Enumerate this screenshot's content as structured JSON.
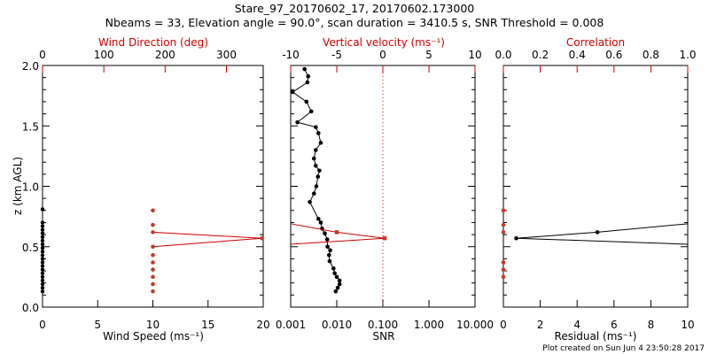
{
  "header": {
    "title_line1": "Stare_97_20170602_17, 20170602.173000",
    "title_line2": "Nbeams = 33, Elevation angle = 90.0°, scan duration = 3410.5 s, SNR Threshold = 0.008"
  },
  "footer": {
    "plot_created": "Plot created on Sun Jun  4 23:50:28 2017"
  },
  "colors": {
    "axis": "#000000",
    "accent": "#cc0000",
    "dot_red": "#c0392b"
  },
  "chart_data": [
    {
      "type": "scatter",
      "name": "wind",
      "ylabel": "z (km AGL)",
      "ylim": [
        0.0,
        2.0
      ],
      "yticks": [
        "0.0",
        "0.5",
        "1.0",
        "1.5",
        "2.0"
      ],
      "bottom_axis": {
        "label": "Wind Speed (ms⁻¹)",
        "lim": [
          0,
          20
        ],
        "ticks": [
          "0",
          "5",
          "10",
          "15",
          "20"
        ]
      },
      "top_axis": {
        "label": "Wind Direction (deg)",
        "lim": [
          0,
          360
        ],
        "ticks": [
          "0",
          "100",
          "200",
          "300"
        ]
      },
      "wind_speed": {
        "z": [
          0.13,
          0.16,
          0.19,
          0.22,
          0.25,
          0.28,
          0.31,
          0.34,
          0.37,
          0.4,
          0.43,
          0.46,
          0.49,
          0.52,
          0.55,
          0.58,
          0.61,
          0.64,
          0.67,
          0.7,
          0.81
        ],
        "values": [
          0,
          0,
          0,
          0,
          0,
          0,
          0,
          0,
          0,
          0,
          0,
          0,
          0,
          0,
          0,
          0,
          0,
          0,
          0,
          0,
          0
        ]
      },
      "wind_direction": {
        "points": [
          {
            "z": 0.13,
            "dir": 180
          },
          {
            "z": 0.19,
            "dir": 180
          },
          {
            "z": 0.25,
            "dir": 180
          },
          {
            "z": 0.31,
            "dir": 180
          },
          {
            "z": 0.37,
            "dir": 180
          },
          {
            "z": 0.43,
            "dir": 180
          },
          {
            "z": 0.5,
            "dir": 180
          },
          {
            "z": 0.57,
            "dir": 358
          },
          {
            "z": 0.62,
            "dir": 180
          },
          {
            "z": 0.68,
            "dir": 180
          },
          {
            "z": 0.8,
            "dir": 180
          }
        ]
      }
    },
    {
      "type": "line",
      "name": "vertical-velocity",
      "bottom_axis": {
        "label": "SNR",
        "scale": "log",
        "lim": [
          0.001,
          10.0
        ],
        "ticks": [
          "0.001",
          "0.010",
          "0.100",
          "1.000",
          "10.000"
        ]
      },
      "top_axis": {
        "label": "Vertical velocity (ms⁻¹)",
        "lim": [
          -10,
          10
        ],
        "ticks": [
          "-10",
          "-5",
          "0",
          "5",
          "10"
        ]
      },
      "snr": {
        "points": [
          {
            "z": 0.13,
            "snr": 0.0095
          },
          {
            "z": 0.16,
            "snr": 0.0105
          },
          {
            "z": 0.19,
            "snr": 0.0115
          },
          {
            "z": 0.22,
            "snr": 0.0115
          },
          {
            "z": 0.25,
            "snr": 0.01
          },
          {
            "z": 0.28,
            "snr": 0.009
          },
          {
            "z": 0.32,
            "snr": 0.0085
          },
          {
            "z": 0.38,
            "snr": 0.007
          },
          {
            "z": 0.43,
            "snr": 0.0068
          },
          {
            "z": 0.47,
            "snr": 0.0072
          },
          {
            "z": 0.5,
            "snr": 0.0063
          },
          {
            "z": 0.56,
            "snr": 0.0062
          },
          {
            "z": 0.61,
            "snr": 0.0055
          },
          {
            "z": 0.65,
            "snr": 0.0048
          },
          {
            "z": 0.7,
            "snr": 0.0045
          },
          {
            "z": 0.73,
            "snr": 0.004
          },
          {
            "z": 0.87,
            "snr": 0.0026
          },
          {
            "z": 0.94,
            "snr": 0.0032
          },
          {
            "z": 1.0,
            "snr": 0.0036
          },
          {
            "z": 1.08,
            "snr": 0.0039
          },
          {
            "z": 1.13,
            "snr": 0.0042
          },
          {
            "z": 1.17,
            "snr": 0.0035
          },
          {
            "z": 1.23,
            "snr": 0.0032
          },
          {
            "z": 1.3,
            "snr": 0.0035
          },
          {
            "z": 1.36,
            "snr": 0.0045
          },
          {
            "z": 1.44,
            "snr": 0.004
          },
          {
            "z": 1.49,
            "snr": 0.0035
          },
          {
            "z": 1.53,
            "snr": 0.0014
          },
          {
            "z": 1.62,
            "snr": 0.0028
          },
          {
            "z": 1.7,
            "snr": 0.0022
          },
          {
            "z": 1.78,
            "snr": 0.0011
          },
          {
            "z": 1.86,
            "snr": 0.0023
          },
          {
            "z": 1.91,
            "snr": 0.0024
          },
          {
            "z": 1.97,
            "snr": 0.002
          }
        ]
      },
      "vertical_velocity": {
        "points": [
          {
            "z": 0.52,
            "w": -10.0
          },
          {
            "z": 0.57,
            "w": 0.2
          },
          {
            "z": 0.62,
            "w": -5.0
          },
          {
            "z": 0.69,
            "w": -10.0
          }
        ]
      },
      "reference_line": {
        "snr": 0.1,
        "style": "dotted"
      }
    },
    {
      "type": "line",
      "name": "correlation",
      "bottom_axis": {
        "label": "Residual (ms⁻¹)",
        "lim": [
          0,
          10
        ],
        "ticks": [
          "0",
          "2",
          "4",
          "6",
          "8",
          "10"
        ]
      },
      "top_axis": {
        "label": "Correlation",
        "lim": [
          0.0,
          1.0
        ],
        "ticks": [
          "0.0",
          "0.2",
          "0.4",
          "0.6",
          "0.8",
          "1.0"
        ]
      },
      "residual": {
        "points": [
          {
            "z": 0.52,
            "r": 10.0
          },
          {
            "z": 0.57,
            "r": 0.7
          },
          {
            "z": 0.62,
            "r": 5.1
          },
          {
            "z": 0.69,
            "r": 10.0
          }
        ]
      },
      "correlation": {
        "points": [
          {
            "z": 0.25,
            "c": 0.0
          },
          {
            "z": 0.31,
            "c": 0.0
          },
          {
            "z": 0.37,
            "c": 0.0
          },
          {
            "z": 0.62,
            "c": 0.0
          },
          {
            "z": 0.68,
            "c": 0.0
          },
          {
            "z": 0.8,
            "c": 0.0
          }
        ]
      }
    }
  ]
}
